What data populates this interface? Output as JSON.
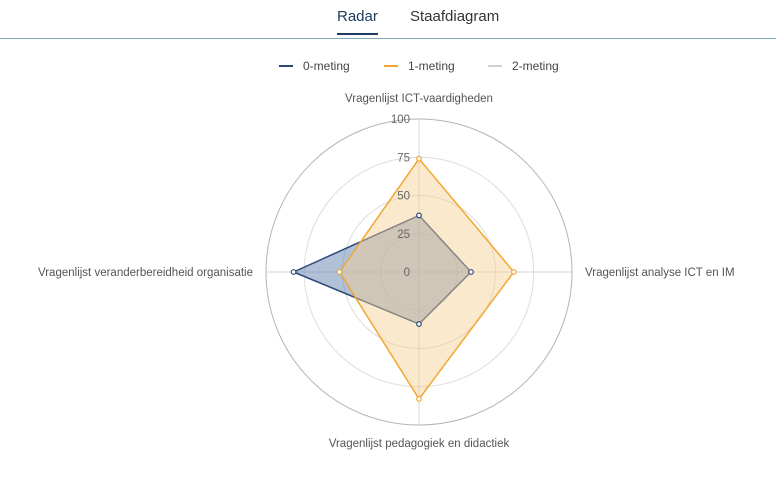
{
  "tabs": [
    {
      "label": "Radar",
      "active": true
    },
    {
      "label": "Staafdiagram",
      "active": false
    }
  ],
  "chart_data": {
    "type": "radar",
    "axes": [
      "Vragenlijst ICT-vaardigheden",
      "Vragenlijst analyse ICT en IM",
      "Vragenlijst pedagogiek en didactiek",
      "Vragenlijst veranderbereidheid organisatie"
    ],
    "range": [
      0,
      100
    ],
    "ticks": [
      "0",
      "25",
      "50",
      "75",
      "100"
    ],
    "series": [
      {
        "name": "0-meting",
        "color": "#2d4a78",
        "fill": "#6f8db5",
        "values": [
          37,
          34,
          34,
          82
        ]
      },
      {
        "name": "1-meting",
        "color": "#f0a830",
        "fill": "#f7cf92",
        "values": [
          74,
          62,
          83,
          52
        ]
      },
      {
        "name": "2-meting",
        "color": "#d0d0d0",
        "fill": "#e8e8e8",
        "values": []
      }
    ],
    "legend_position": "top-center"
  }
}
